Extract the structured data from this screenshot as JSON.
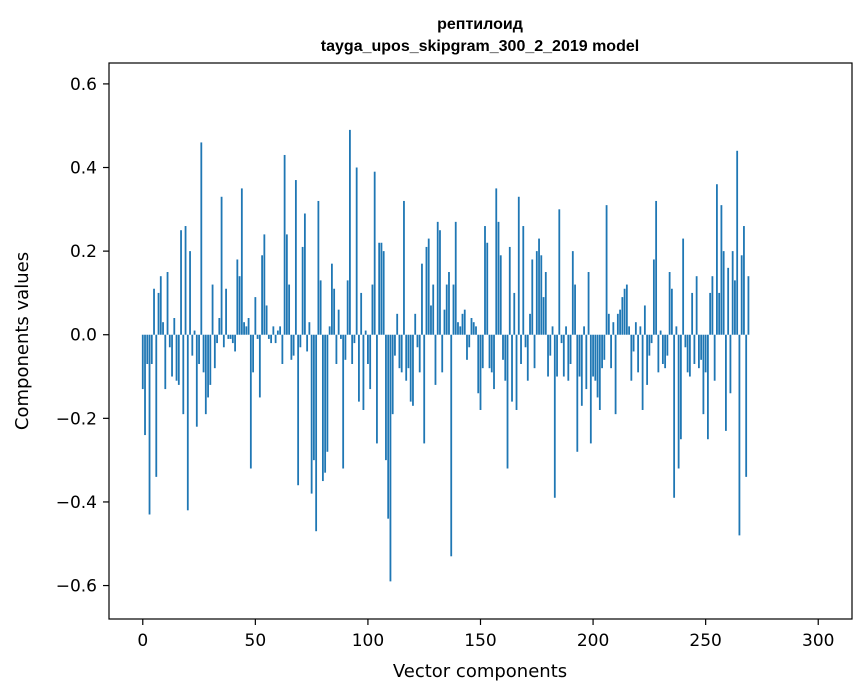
{
  "chart_data": {
    "type": "bar",
    "title": "рептилоид",
    "subtitle": "tayga_upos_skipgram_300_2_2019 model",
    "xlabel": "Vector components",
    "ylabel": "Components values",
    "xlim": [
      -15,
      315
    ],
    "ylim": [
      -0.68,
      0.65
    ],
    "xticks": [
      0,
      50,
      100,
      150,
      200,
      250,
      300
    ],
    "xtick_labels": [
      "0",
      "50",
      "100",
      "150",
      "200",
      "250",
      "300"
    ],
    "yticks": [
      -0.6,
      -0.4,
      -0.2,
      0.0,
      0.2,
      0.4,
      0.6
    ],
    "ytick_labels": [
      "−0.6",
      "−0.4",
      "−0.2",
      "0.0",
      "0.2",
      "0.4",
      "0.6"
    ],
    "grid": false,
    "bar_color": "#1f77b4",
    "series": [
      {
        "values": [
          -0.13,
          -0.24,
          -0.07,
          -0.43,
          -0.07,
          0.11,
          -0.34,
          0.1,
          0.14,
          0.03,
          -0.13,
          0.15,
          -0.03,
          -0.1,
          0.04,
          -0.11,
          -0.12,
          0.25,
          -0.19,
          0.26,
          -0.42,
          0.2,
          -0.05,
          0.01,
          -0.22,
          -0.07,
          0.46,
          -0.09,
          -0.19,
          -0.15,
          -0.12,
          0.12,
          -0.08,
          -0.02,
          0.04,
          0.33,
          -0.03,
          0.11,
          -0.01,
          -0.01,
          -0.02,
          -0.04,
          0.18,
          0.14,
          0.35,
          0.03,
          0.02,
          0.04,
          -0.32,
          -0.09,
          0.09,
          -0.01,
          -0.15,
          0.19,
          0.24,
          0.07,
          -0.01,
          -0.02,
          0.02,
          -0.02,
          0.01,
          0.02,
          -0.07,
          0.43,
          0.24,
          0.12,
          -0.06,
          -0.05,
          0.37,
          -0.36,
          -0.03,
          0.21,
          0.29,
          -0.04,
          0.03,
          -0.38,
          -0.3,
          -0.47,
          0.32,
          0.13,
          -0.35,
          -0.33,
          -0.28,
          0.02,
          0.17,
          0.11,
          -0.07,
          0.06,
          -0.01,
          -0.32,
          -0.06,
          0.13,
          0.49,
          -0.07,
          -0.02,
          0.4,
          -0.16,
          0.1,
          -0.18,
          0.01,
          -0.07,
          -0.13,
          0.12,
          0.39,
          -0.26,
          0.22,
          0.22,
          0.2,
          -0.3,
          -0.44,
          -0.59,
          -0.19,
          -0.05,
          0.05,
          -0.08,
          -0.09,
          0.32,
          -0.11,
          -0.08,
          -0.16,
          -0.17,
          0.05,
          -0.03,
          -0.09,
          0.17,
          -0.26,
          0.21,
          0.23,
          0.07,
          0.12,
          -0.12,
          0.27,
          0.25,
          -0.09,
          0.06,
          0.12,
          0.15,
          -0.53,
          0.12,
          0.27,
          0.03,
          0.02,
          0.05,
          0.06,
          -0.06,
          -0.03,
          0.04,
          0.03,
          0.02,
          -0.14,
          -0.18,
          -0.08,
          0.26,
          0.22,
          -0.08,
          -0.09,
          -0.13,
          0.35,
          0.27,
          0.19,
          -0.06,
          -0.11,
          -0.32,
          0.21,
          -0.16,
          0.1,
          -0.18,
          0.33,
          -0.07,
          0.26,
          -0.03,
          -0.11,
          0.05,
          0.18,
          -0.08,
          0.2,
          0.23,
          0.19,
          0.09,
          0.15,
          -0.1,
          -0.05,
          0.02,
          -0.39,
          -0.1,
          0.3,
          -0.02,
          -0.1,
          0.02,
          -0.11,
          -0.07,
          0.2,
          0.12,
          -0.28,
          -0.1,
          -0.17,
          0.02,
          -0.13,
          0.15,
          -0.26,
          -0.1,
          -0.11,
          -0.15,
          -0.18,
          -0.08,
          -0.06,
          0.31,
          0.05,
          -0.08,
          0.03,
          -0.19,
          0.05,
          0.06,
          0.09,
          0.11,
          0.12,
          0.02,
          -0.11,
          -0.04,
          0.03,
          -0.09,
          0.02,
          -0.18,
          0.07,
          -0.12,
          -0.05,
          -0.02,
          0.18,
          0.32,
          -0.09,
          0.01,
          -0.07,
          -0.08,
          -0.05,
          0.15,
          0.11,
          -0.39,
          0.02,
          -0.32,
          -0.25,
          0.23,
          -0.03,
          -0.09,
          -0.1,
          0.1,
          -0.07,
          0.14,
          -0.08,
          -0.06,
          -0.19,
          -0.09,
          -0.25,
          0.1,
          0.14,
          -0.11,
          0.36,
          0.1,
          0.31,
          0.2,
          -0.23,
          0.16,
          -0.14,
          0.2,
          0.13,
          0.44,
          -0.48,
          0.19,
          0.26,
          -0.34,
          0.14
        ]
      }
    ]
  }
}
